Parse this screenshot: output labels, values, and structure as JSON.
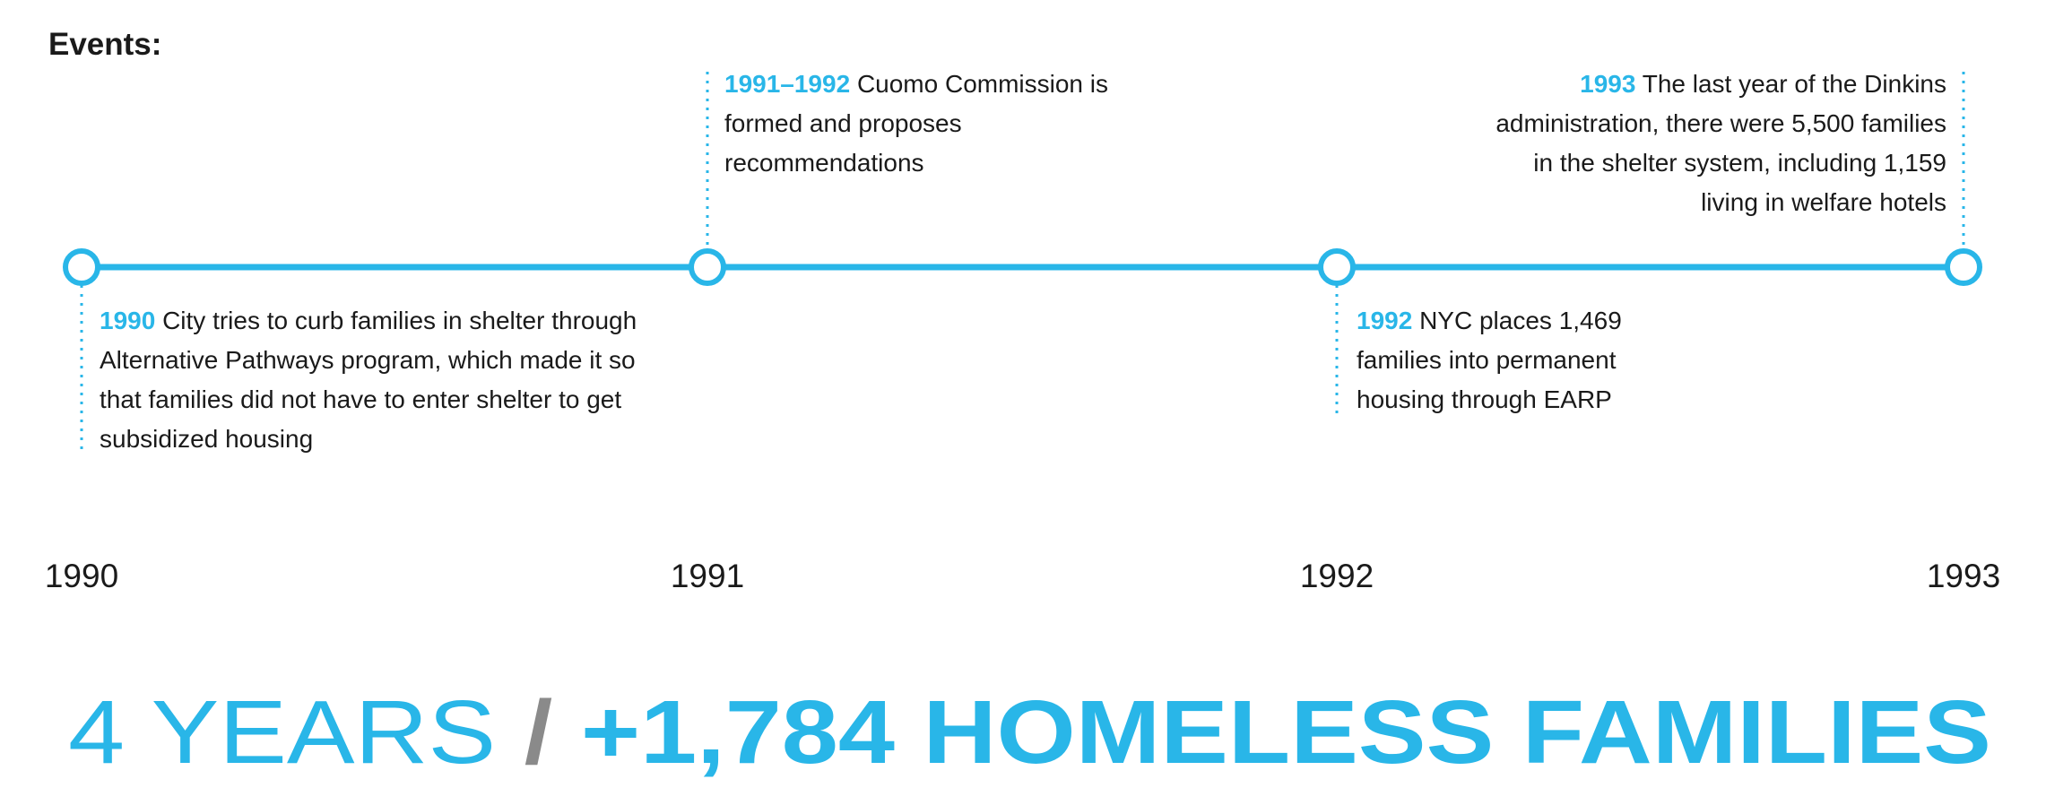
{
  "header": {
    "title": "Events:"
  },
  "events": [
    {
      "year": "1990",
      "text": "City tries to curb families in shelter through Alternative Pathways program, which made it so that families did not have to enter shelter to get subsidized housing"
    },
    {
      "year": "1991–1992",
      "text": "Cuomo Commission is formed and proposes recommendations"
    },
    {
      "year": "1992",
      "text": "NYC places 1,469 families into permanent housing through EARP"
    },
    {
      "year": "1993",
      "text": "The last year of the Dinkins administration, there were 5,500 families in the shelter system, including 1,159 living in welfare hotels"
    }
  ],
  "axis": {
    "labels": [
      "1990",
      "1991",
      "1992",
      "1993"
    ]
  },
  "footer": {
    "years": "4 YEARS",
    "separator": "/",
    "headline": "+1,784 HOMELESS FAMILIES"
  }
}
